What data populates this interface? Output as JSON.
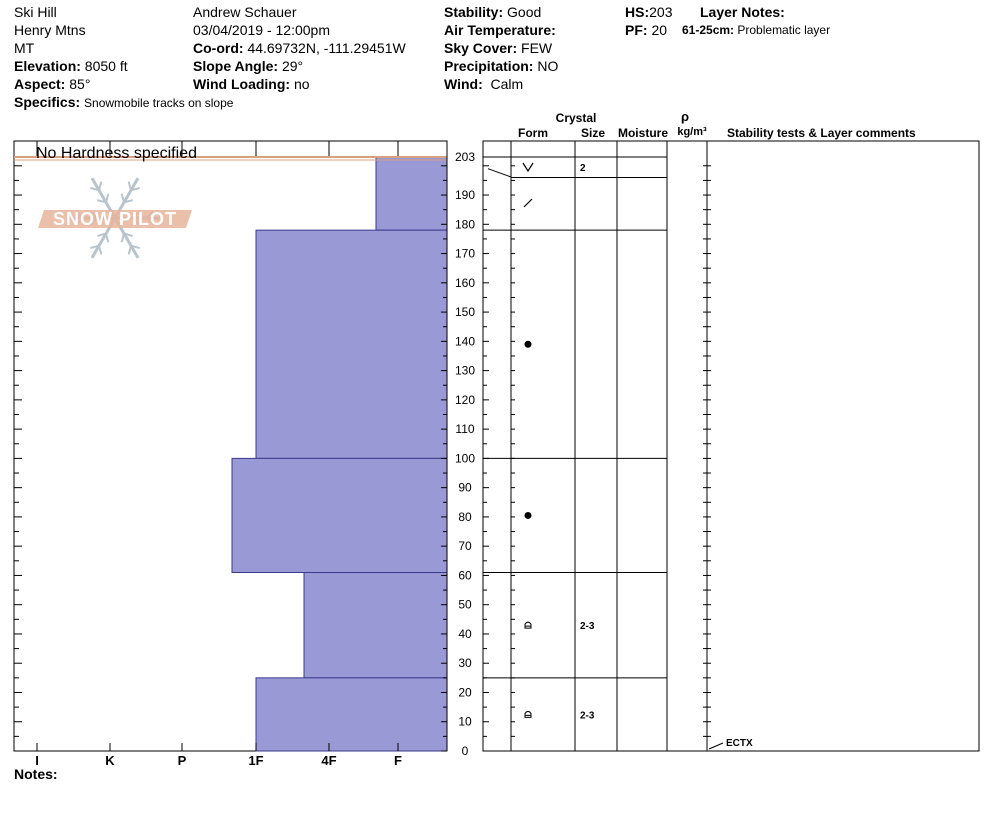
{
  "header": {
    "location": "Ski Hill",
    "range": "Henry Mtns",
    "state": "MT",
    "elevation_label": "Elevation:",
    "elevation": "8050 ft",
    "aspect_label": "Aspect:",
    "aspect": "85°",
    "specifics_label": "Specifics:",
    "specifics": "Snowmobile tracks on slope",
    "observer": "Andrew Schauer",
    "datetime": "03/04/2019 - 12:00pm",
    "coord_label": "Co-ord:",
    "coord": "44.69732N, -111.29451W",
    "slope_label": "Slope Angle:",
    "slope": "29°",
    "wind_loading_label": "Wind Loading:",
    "wind_loading": "no",
    "stability_label": "Stability:",
    "stability": "Good",
    "air_temp_label": "Air Temperature:",
    "sky_label": "Sky Cover:",
    "sky": "FEW",
    "precip_label": "Precipitation:",
    "precip": "NO",
    "wind_label": "Wind:",
    "wind": "Calm",
    "hs_label": "HS:",
    "hs": "203",
    "pf_label": "PF:",
    "pf": "20",
    "layer_notes_label": "Layer Notes:",
    "layer_note_range": "61-25cm:",
    "layer_note_text": "Problematic layer"
  },
  "notes_label": "Notes:",
  "logo_text": "SNOW PILOT",
  "colors": {
    "layer_fill": "#9999d6",
    "layer_stroke": "#3a3a8c",
    "surface_line": "#d9a080"
  },
  "chart_data": {
    "type": "snow-profile",
    "hardness_panel": {
      "message": "No Hardness specified",
      "x_ticks": [
        "I",
        "K",
        "P",
        "1F",
        "4F",
        "F"
      ],
      "layers": [
        {
          "top": 203,
          "bottom": 178,
          "hardness": "F+"
        },
        {
          "top": 178,
          "bottom": 100,
          "hardness": "1F"
        },
        {
          "top": 100,
          "bottom": 61,
          "hardness": "1F-"
        },
        {
          "top": 61,
          "bottom": 25,
          "hardness": "4F"
        },
        {
          "top": 25,
          "bottom": 0,
          "hardness": "1F"
        }
      ]
    },
    "y_axis": {
      "range": [
        0,
        203
      ],
      "major_ticks": [
        0,
        10,
        20,
        30,
        40,
        50,
        60,
        70,
        80,
        90,
        100,
        110,
        120,
        130,
        140,
        150,
        160,
        170,
        180,
        190,
        203
      ]
    },
    "columns": {
      "crystal_label": "Crystal",
      "form_label": "Form",
      "size_label": "Size",
      "moisture_label": "Moisture",
      "rho_label": "ρ",
      "density_unit": "kg/m³",
      "comments_label": "Stability tests & Layer comments"
    },
    "layer_boundaries": [
      203,
      196,
      178,
      100,
      61,
      25,
      0
    ],
    "crystals": [
      {
        "top": 203,
        "bottom": 196,
        "form": "surface-hoar",
        "size": "2"
      },
      {
        "top": 196,
        "bottom": 178,
        "form": "precip-particles",
        "size": ""
      },
      {
        "top": 178,
        "bottom": 100,
        "form": "melt-forms",
        "size": ""
      },
      {
        "top": 100,
        "bottom": 61,
        "form": "melt-forms",
        "size": ""
      },
      {
        "top": 61,
        "bottom": 25,
        "form": "depth-hoar",
        "size": "2-3"
      },
      {
        "top": 25,
        "bottom": 0,
        "form": "depth-hoar",
        "size": "2-3"
      }
    ],
    "tests": [
      {
        "depth": 0,
        "label": "ECTX"
      }
    ]
  }
}
